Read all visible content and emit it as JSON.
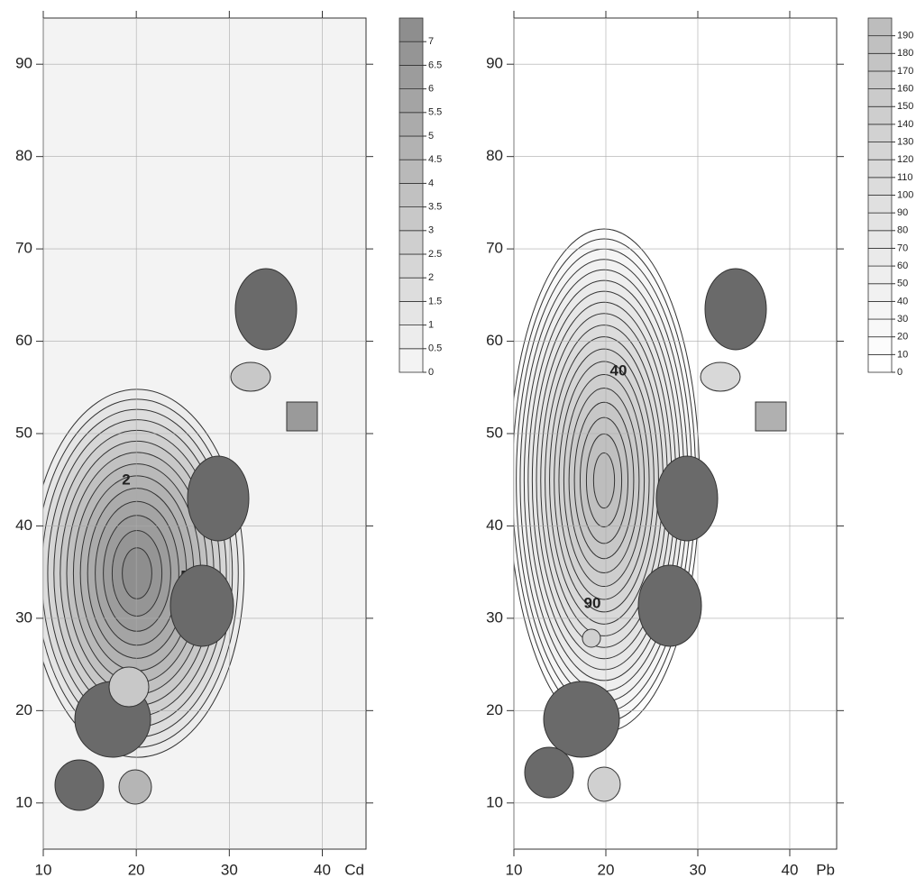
{
  "chart_data": [
    {
      "type": "contour",
      "x_label": "Cd",
      "xlim": [
        10,
        44.7
      ],
      "ylim": [
        5,
        95
      ],
      "xticks": [
        10,
        20,
        30,
        40
      ],
      "yticks": [
        10,
        20,
        30,
        40,
        50,
        60,
        70,
        80,
        90
      ],
      "levels": [
        0,
        0.5,
        1,
        1.5,
        2,
        2.5,
        3,
        3.5,
        4,
        4.5,
        5,
        5.5,
        6,
        6.5,
        7
      ],
      "colors": [
        "#f3f3f3",
        "#8e8e8e"
      ],
      "contour_labels": [
        2,
        5
      ],
      "grid": true
    },
    {
      "type": "contour",
      "x_label": "Pb",
      "xlim": [
        10,
        45.1
      ],
      "ylim": [
        5,
        95
      ],
      "xticks": [
        10,
        20,
        30,
        40
      ],
      "yticks": [
        10,
        20,
        30,
        40,
        50,
        60,
        70,
        80,
        90
      ],
      "levels": [
        0,
        10,
        20,
        30,
        40,
        50,
        60,
        70,
        80,
        90,
        100,
        110,
        120,
        130,
        140,
        150,
        160,
        170,
        180,
        190
      ],
      "colors": [
        "#ffffff",
        "#bdbdbd"
      ],
      "contour_labels": [
        40,
        90
      ],
      "grid": true
    }
  ]
}
